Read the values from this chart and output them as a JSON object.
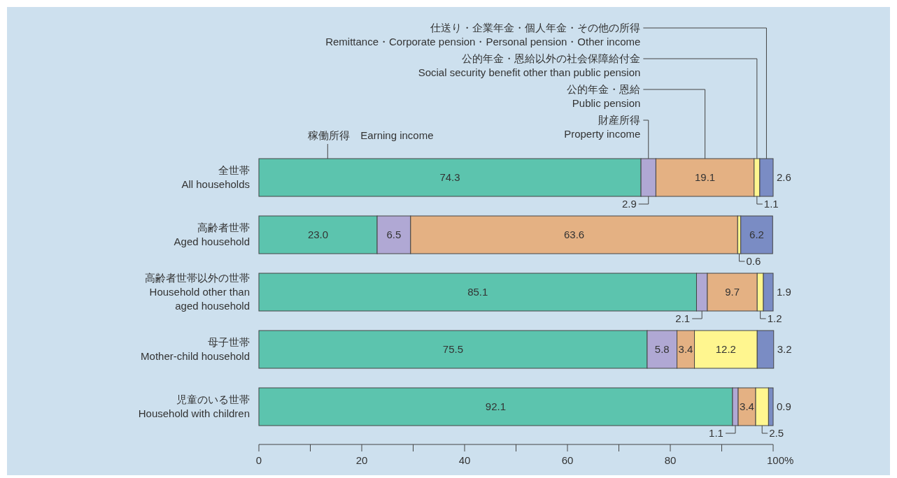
{
  "chart_data": {
    "type": "bar",
    "orientation": "horizontal",
    "stacked": true,
    "legend": "top",
    "grid": false,
    "categories": [
      "全世帯\nAll households",
      "高齢者世帯\nAged household",
      "高齢者世帯以外の世帯\nHousehold other than\naged household",
      "母子世帯\nMother-child household",
      "児童のいる世帯\nHousehold with children"
    ],
    "series": [
      {
        "name": "稼働所得　Earning income",
        "color": "#5cc4ae",
        "values": [
          74.3,
          23.0,
          85.1,
          75.5,
          92.1
        ],
        "value_labels": [
          "74.3",
          "23.0",
          "85.1",
          "75.5",
          "92.1"
        ]
      },
      {
        "name": "財産所得\nProperty income",
        "color": "#b0a8d4",
        "values": [
          2.9,
          6.5,
          2.1,
          5.8,
          1.1
        ],
        "value_labels": [
          "2.9",
          "6.5",
          "2.1",
          "5.8",
          "1.1"
        ]
      },
      {
        "name": "公的年金・恩給\nPublic pension",
        "color": "#e4b183",
        "values": [
          19.1,
          63.6,
          9.7,
          3.4,
          3.4
        ],
        "value_labels": [
          "19.1",
          "63.6",
          "9.7",
          "3.4",
          "3.4"
        ]
      },
      {
        "name": "公的年金・恩給以外の社会保障給付金\nSocial security benefit other than public pension",
        "color": "#fff68f",
        "values": [
          1.1,
          0.6,
          1.2,
          12.2,
          2.5
        ],
        "value_labels": [
          "1.1",
          "0.6",
          "1.2",
          "12.2",
          "2.5"
        ]
      },
      {
        "name": "仕送り・企業年金・個人年金・その他の所得\nRemittance・Corporate pension・Personal pension・Other income",
        "color": "#7a8cc4",
        "values": [
          2.6,
          6.2,
          1.9,
          3.2,
          0.9
        ],
        "value_labels": [
          "2.6",
          "6.2",
          "1.9",
          "3.2",
          "0.9"
        ]
      }
    ],
    "xlim": [
      0,
      100
    ],
    "xticks": [
      0,
      {
        "value": 10,
        "label": null
      },
      20,
      {
        "value": 30,
        "label": null
      },
      40,
      {
        "value": 50,
        "label": null
      },
      60,
      {
        "value": 70,
        "label": null
      },
      80,
      {
        "value": 90,
        "label": null
      },
      {
        "value": 100,
        "label": "100%"
      }
    ]
  }
}
